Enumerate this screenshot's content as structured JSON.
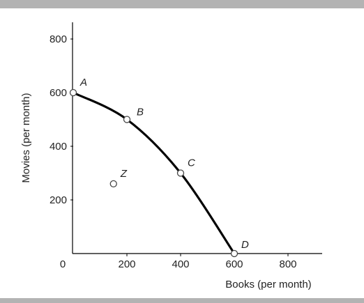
{
  "chart_data": {
    "type": "line",
    "xlabel": "Books (per month)",
    "ylabel": "Movies (per month)",
    "xlim": [
      0,
      900
    ],
    "ylim": [
      0,
      900
    ],
    "x_ticks": [
      0,
      200,
      400,
      600,
      800
    ],
    "y_ticks": [
      200,
      400,
      600,
      800
    ],
    "x_tick_labels": [
      "0",
      "200",
      "400",
      "600",
      "800"
    ],
    "y_tick_labels": [
      "200",
      "400",
      "600",
      "800"
    ],
    "grid": false,
    "series": [
      {
        "points": [
          {
            "label": "A",
            "x": 0,
            "y": 600
          },
          {
            "label": "B",
            "x": 200,
            "y": 500
          },
          {
            "label": "C",
            "x": 400,
            "y": 300
          },
          {
            "label": "D",
            "x": 600,
            "y": 0
          }
        ]
      }
    ],
    "extra_points": [
      {
        "label": "Z",
        "x": 150,
        "y": 260
      }
    ],
    "colors": {
      "curve": "#000000",
      "marker_fill": "#ffffff",
      "marker_stroke": "#444444"
    }
  }
}
